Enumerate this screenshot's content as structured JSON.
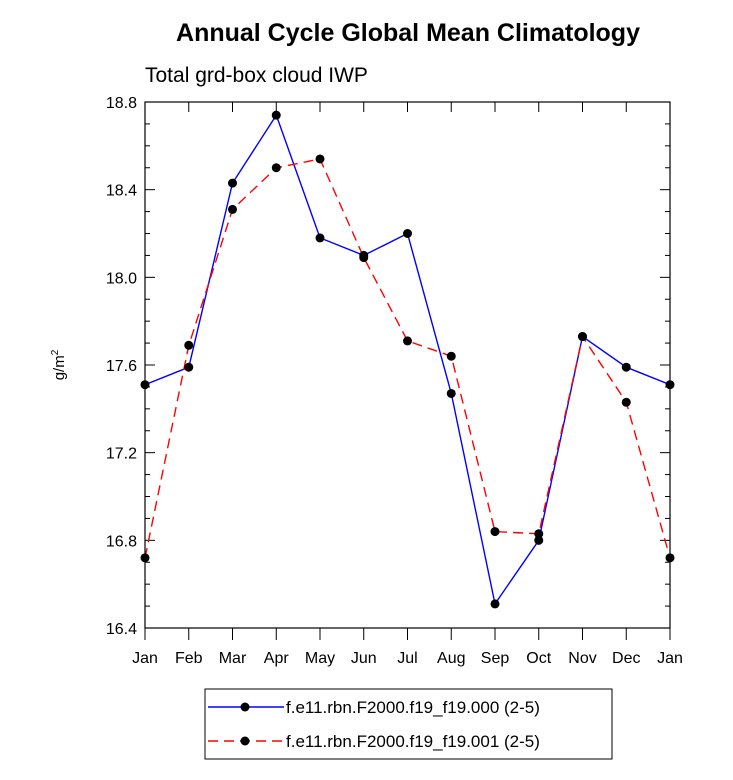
{
  "chart_data": {
    "type": "line",
    "title": "Annual Cycle Global Mean Climatology",
    "subtitle": "Total grd-box cloud IWP",
    "ylabel_base": "g/m",
    "ylabel_sup": "2",
    "xlabel": "",
    "ylim": [
      16.4,
      18.8
    ],
    "yticks": [
      "16.4",
      "16.8",
      "17.2",
      "17.6",
      "18.0",
      "18.4",
      "18.8"
    ],
    "categories": [
      "Jan",
      "Feb",
      "Mar",
      "Apr",
      "May",
      "Jun",
      "Jul",
      "Aug",
      "Sep",
      "Oct",
      "Nov",
      "Dec",
      "Jan"
    ],
    "series": [
      {
        "name": "f.e11.rbn.F2000.f19_f19.000 (2-5)",
        "color": "#0000ff",
        "dash": "solid",
        "values": [
          17.51,
          17.59,
          18.43,
          18.74,
          18.18,
          18.1,
          18.2,
          17.47,
          16.51,
          16.8,
          17.73,
          17.59,
          17.51
        ]
      },
      {
        "name": "f.e11.rbn.F2000.f19_f19.001 (2-5)",
        "color": "#ff0000",
        "dash": "dashed",
        "values": [
          16.72,
          17.69,
          18.31,
          18.5,
          18.54,
          18.09,
          17.71,
          17.64,
          16.84,
          16.83,
          17.73,
          17.43,
          16.72
        ]
      }
    ],
    "legend_position": "bottom"
  }
}
